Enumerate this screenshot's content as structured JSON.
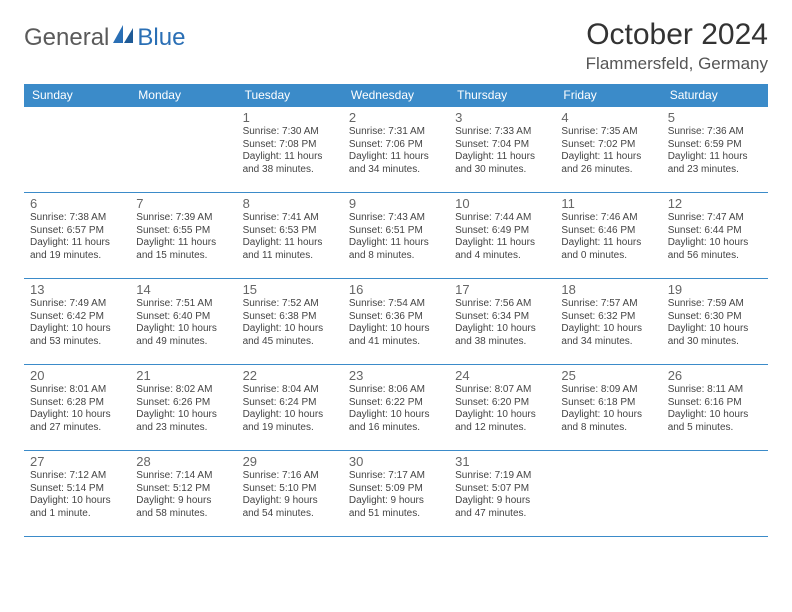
{
  "logo": {
    "word1": "General",
    "word2": "Blue"
  },
  "title": "October 2024",
  "location": "Flammersfeld, Germany",
  "colors": {
    "header_bg": "#3b8bc9",
    "header_text": "#ffffff",
    "cell_border": "#3b8bc9",
    "daynum_color": "#666666",
    "detail_color": "#444444",
    "logo_gray": "#5a5a5a",
    "logo_blue": "#2a6fb5",
    "page_bg": "#ffffff"
  },
  "day_headers": [
    "Sunday",
    "Monday",
    "Tuesday",
    "Wednesday",
    "Thursday",
    "Friday",
    "Saturday"
  ],
  "weeks": [
    [
      null,
      null,
      {
        "n": "1",
        "sr": "Sunrise: 7:30 AM",
        "ss": "Sunset: 7:08 PM",
        "dl": "Daylight: 11 hours and 38 minutes."
      },
      {
        "n": "2",
        "sr": "Sunrise: 7:31 AM",
        "ss": "Sunset: 7:06 PM",
        "dl": "Daylight: 11 hours and 34 minutes."
      },
      {
        "n": "3",
        "sr": "Sunrise: 7:33 AM",
        "ss": "Sunset: 7:04 PM",
        "dl": "Daylight: 11 hours and 30 minutes."
      },
      {
        "n": "4",
        "sr": "Sunrise: 7:35 AM",
        "ss": "Sunset: 7:02 PM",
        "dl": "Daylight: 11 hours and 26 minutes."
      },
      {
        "n": "5",
        "sr": "Sunrise: 7:36 AM",
        "ss": "Sunset: 6:59 PM",
        "dl": "Daylight: 11 hours and 23 minutes."
      }
    ],
    [
      {
        "n": "6",
        "sr": "Sunrise: 7:38 AM",
        "ss": "Sunset: 6:57 PM",
        "dl": "Daylight: 11 hours and 19 minutes."
      },
      {
        "n": "7",
        "sr": "Sunrise: 7:39 AM",
        "ss": "Sunset: 6:55 PM",
        "dl": "Daylight: 11 hours and 15 minutes."
      },
      {
        "n": "8",
        "sr": "Sunrise: 7:41 AM",
        "ss": "Sunset: 6:53 PM",
        "dl": "Daylight: 11 hours and 11 minutes."
      },
      {
        "n": "9",
        "sr": "Sunrise: 7:43 AM",
        "ss": "Sunset: 6:51 PM",
        "dl": "Daylight: 11 hours and 8 minutes."
      },
      {
        "n": "10",
        "sr": "Sunrise: 7:44 AM",
        "ss": "Sunset: 6:49 PM",
        "dl": "Daylight: 11 hours and 4 minutes."
      },
      {
        "n": "11",
        "sr": "Sunrise: 7:46 AM",
        "ss": "Sunset: 6:46 PM",
        "dl": "Daylight: 11 hours and 0 minutes."
      },
      {
        "n": "12",
        "sr": "Sunrise: 7:47 AM",
        "ss": "Sunset: 6:44 PM",
        "dl": "Daylight: 10 hours and 56 minutes."
      }
    ],
    [
      {
        "n": "13",
        "sr": "Sunrise: 7:49 AM",
        "ss": "Sunset: 6:42 PM",
        "dl": "Daylight: 10 hours and 53 minutes."
      },
      {
        "n": "14",
        "sr": "Sunrise: 7:51 AM",
        "ss": "Sunset: 6:40 PM",
        "dl": "Daylight: 10 hours and 49 minutes."
      },
      {
        "n": "15",
        "sr": "Sunrise: 7:52 AM",
        "ss": "Sunset: 6:38 PM",
        "dl": "Daylight: 10 hours and 45 minutes."
      },
      {
        "n": "16",
        "sr": "Sunrise: 7:54 AM",
        "ss": "Sunset: 6:36 PM",
        "dl": "Daylight: 10 hours and 41 minutes."
      },
      {
        "n": "17",
        "sr": "Sunrise: 7:56 AM",
        "ss": "Sunset: 6:34 PM",
        "dl": "Daylight: 10 hours and 38 minutes."
      },
      {
        "n": "18",
        "sr": "Sunrise: 7:57 AM",
        "ss": "Sunset: 6:32 PM",
        "dl": "Daylight: 10 hours and 34 minutes."
      },
      {
        "n": "19",
        "sr": "Sunrise: 7:59 AM",
        "ss": "Sunset: 6:30 PM",
        "dl": "Daylight: 10 hours and 30 minutes."
      }
    ],
    [
      {
        "n": "20",
        "sr": "Sunrise: 8:01 AM",
        "ss": "Sunset: 6:28 PM",
        "dl": "Daylight: 10 hours and 27 minutes."
      },
      {
        "n": "21",
        "sr": "Sunrise: 8:02 AM",
        "ss": "Sunset: 6:26 PM",
        "dl": "Daylight: 10 hours and 23 minutes."
      },
      {
        "n": "22",
        "sr": "Sunrise: 8:04 AM",
        "ss": "Sunset: 6:24 PM",
        "dl": "Daylight: 10 hours and 19 minutes."
      },
      {
        "n": "23",
        "sr": "Sunrise: 8:06 AM",
        "ss": "Sunset: 6:22 PM",
        "dl": "Daylight: 10 hours and 16 minutes."
      },
      {
        "n": "24",
        "sr": "Sunrise: 8:07 AM",
        "ss": "Sunset: 6:20 PM",
        "dl": "Daylight: 10 hours and 12 minutes."
      },
      {
        "n": "25",
        "sr": "Sunrise: 8:09 AM",
        "ss": "Sunset: 6:18 PM",
        "dl": "Daylight: 10 hours and 8 minutes."
      },
      {
        "n": "26",
        "sr": "Sunrise: 8:11 AM",
        "ss": "Sunset: 6:16 PM",
        "dl": "Daylight: 10 hours and 5 minutes."
      }
    ],
    [
      {
        "n": "27",
        "sr": "Sunrise: 7:12 AM",
        "ss": "Sunset: 5:14 PM",
        "dl": "Daylight: 10 hours and 1 minute."
      },
      {
        "n": "28",
        "sr": "Sunrise: 7:14 AM",
        "ss": "Sunset: 5:12 PM",
        "dl": "Daylight: 9 hours and 58 minutes."
      },
      {
        "n": "29",
        "sr": "Sunrise: 7:16 AM",
        "ss": "Sunset: 5:10 PM",
        "dl": "Daylight: 9 hours and 54 minutes."
      },
      {
        "n": "30",
        "sr": "Sunrise: 7:17 AM",
        "ss": "Sunset: 5:09 PM",
        "dl": "Daylight: 9 hours and 51 minutes."
      },
      {
        "n": "31",
        "sr": "Sunrise: 7:19 AM",
        "ss": "Sunset: 5:07 PM",
        "dl": "Daylight: 9 hours and 47 minutes."
      },
      null,
      null
    ]
  ]
}
